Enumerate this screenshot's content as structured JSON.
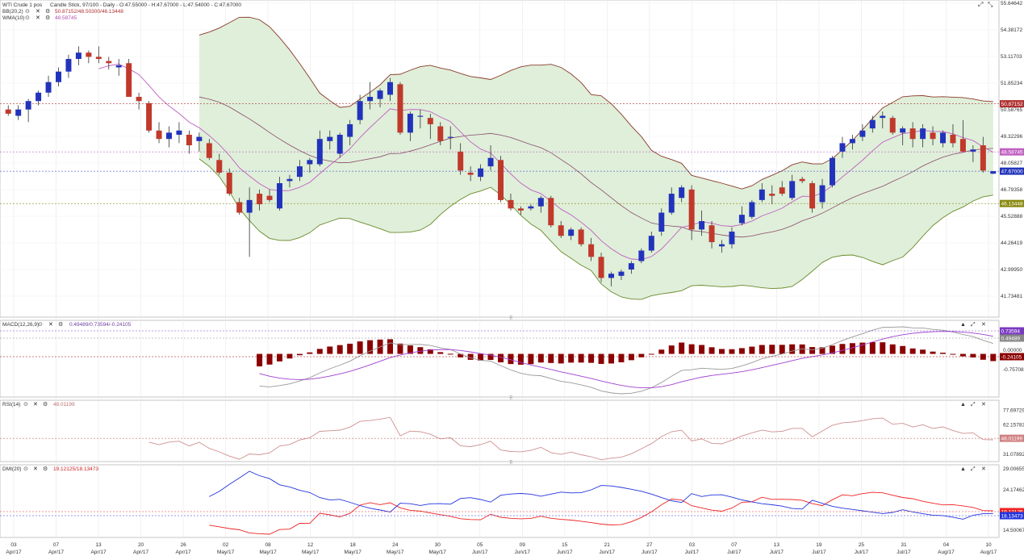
{
  "panels": {
    "main": {
      "title": "WTI Crude 1 pos",
      "info": "Candle Stick, 97/100 - Daily - O:47.55000 - H:47.67000 - L:47.54000 - C:47.67000",
      "bb_label": "BB(20,2)",
      "bb_values": "50.87152/48.50300/46.13448",
      "wma_label": "WMA(10)",
      "wma_value": "48.58745",
      "axis_ticks": [
        "55.64642",
        "54.38172",
        "53.11703",
        "51.85234",
        "50.58765",
        "49.32296",
        "48.05827",
        "46.79358",
        "45.52888",
        "44.26419",
        "42.99950",
        "41.73481"
      ],
      "badges": {
        "bb_upper": "50.87152",
        "wma": "48.58745",
        "last": "47.67000",
        "bb_lower": "46.13448"
      }
    },
    "macd": {
      "label": "MACD(12,26,9)",
      "values": "0.49489/0.73594/-0.24105",
      "axis_ticks": [
        "0.00000",
        "-0.75708"
      ],
      "badges": {
        "signal": "0.73594",
        "macd": "0.49489",
        "hist": "-0.24105"
      }
    },
    "rsi": {
      "label": "RSI(14)",
      "value": "48.01199",
      "axis_ticks": [
        "77.69729",
        "62.15783",
        "31.07892"
      ],
      "badges": {
        "rsi": "48.01199"
      }
    },
    "dmi": {
      "label": "DMI(20)",
      "values": "19.12125/18.13473",
      "axis_ticks": [
        "29.00655",
        "24.17462",
        "14.50067"
      ],
      "badges": {
        "plus": "19.12125",
        "minus": "18.13473"
      }
    }
  },
  "x_axis": {
    "ticks": [
      {
        "day": "03",
        "month": "Apr/17"
      },
      {
        "day": "07",
        "month": "Apr/17"
      },
      {
        "day": "13",
        "month": "Apr/17"
      },
      {
        "day": "20",
        "month": "Apr/17"
      },
      {
        "day": "26",
        "month": "Apr/17"
      },
      {
        "day": "02",
        "month": "May/17"
      },
      {
        "day": "08",
        "month": "May/17"
      },
      {
        "day": "12",
        "month": "May/17"
      },
      {
        "day": "18",
        "month": "May/17"
      },
      {
        "day": "24",
        "month": "May/17"
      },
      {
        "day": "30",
        "month": "May/17"
      },
      {
        "day": "05",
        "month": "Jun/17"
      },
      {
        "day": "09",
        "month": "Jun/17"
      },
      {
        "day": "15",
        "month": "Jun/17"
      },
      {
        "day": "21",
        "month": "Jun/17"
      },
      {
        "day": "27",
        "month": "Jun/17"
      },
      {
        "day": "03",
        "month": "Jul/17"
      },
      {
        "day": "07",
        "month": "Jul/17"
      },
      {
        "day": "13",
        "month": "Jul/17"
      },
      {
        "day": "19",
        "month": "Jul/17"
      },
      {
        "day": "25",
        "month": "Jul/17"
      },
      {
        "day": "31",
        "month": "Jul/17"
      },
      {
        "day": "04",
        "month": "Aug/17"
      },
      {
        "day": "10",
        "month": "Aug/17"
      }
    ]
  },
  "colors": {
    "up": "#2233bb",
    "down": "#c0392b",
    "band_fill": "#dcedd6",
    "band_line": "#8b3a2a",
    "wma": "#c060c0",
    "macd_line": "#999999",
    "signal_line": "#a040d0",
    "hist": "#8b0000",
    "rsi": "#d09090",
    "dmi_plus": "#ee2222",
    "dmi_minus": "#2233dd"
  },
  "chart_data": {
    "type": "candlestick",
    "x": [
      "Apr/17",
      "May/17",
      "Jun/17",
      "Jul/17",
      "Aug/17"
    ],
    "ohlc": [
      [
        50.6,
        50.8,
        50.3,
        50.4
      ],
      [
        50.3,
        50.8,
        50.1,
        50.6
      ],
      [
        50.6,
        51.1,
        50.0,
        51.0
      ],
      [
        51.0,
        51.5,
        50.8,
        51.4
      ],
      [
        51.4,
        52.2,
        51.2,
        51.9
      ],
      [
        51.9,
        52.6,
        51.7,
        52.4
      ],
      [
        52.4,
        53.2,
        52.1,
        53.0
      ],
      [
        53.0,
        53.6,
        52.7,
        53.3
      ],
      [
        53.3,
        53.4,
        52.8,
        53.1
      ],
      [
        53.1,
        53.6,
        52.8,
        53.0
      ],
      [
        52.9,
        53.1,
        52.5,
        52.8
      ],
      [
        52.6,
        53.0,
        52.2,
        52.7
      ],
      [
        52.8,
        53.0,
        51.2,
        51.2
      ],
      [
        51.2,
        51.4,
        50.6,
        51.0
      ],
      [
        50.9,
        51.0,
        49.5,
        49.6
      ],
      [
        49.6,
        50.0,
        49.0,
        49.2
      ],
      [
        49.2,
        49.8,
        48.8,
        49.5
      ],
      [
        49.4,
        50.0,
        49.0,
        49.6
      ],
      [
        49.4,
        49.6,
        48.5,
        48.9
      ],
      [
        49.1,
        49.5,
        48.6,
        49.3
      ],
      [
        49.0,
        49.2,
        48.2,
        48.3
      ],
      [
        48.2,
        48.5,
        47.5,
        47.6
      ],
      [
        47.6,
        47.8,
        46.5,
        46.6
      ],
      [
        46.2,
        46.4,
        45.6,
        45.7
      ],
      [
        45.7,
        46.9,
        43.6,
        46.3
      ],
      [
        46.6,
        46.8,
        45.8,
        46.1
      ],
      [
        46.5,
        46.8,
        46.2,
        46.3
      ],
      [
        45.9,
        47.4,
        45.8,
        47.1
      ],
      [
        47.2,
        47.5,
        46.9,
        47.3
      ],
      [
        47.4,
        48.2,
        47.2,
        47.9
      ],
      [
        48.0,
        48.3,
        47.6,
        48.2
      ],
      [
        48.0,
        49.6,
        47.9,
        49.2
      ],
      [
        49.1,
        49.6,
        48.7,
        49.3
      ],
      [
        48.5,
        49.5,
        48.3,
        49.4
      ],
      [
        49.3,
        50.1,
        48.9,
        49.9
      ],
      [
        50.1,
        51.3,
        49.9,
        51.0
      ],
      [
        51.0,
        51.9,
        50.6,
        51.2
      ],
      [
        51.1,
        51.6,
        50.7,
        51.5
      ],
      [
        51.3,
        52.1,
        51.0,
        51.9
      ],
      [
        51.8,
        51.9,
        49.4,
        49.5
      ],
      [
        49.5,
        50.5,
        49.1,
        50.4
      ],
      [
        50.3,
        50.6,
        49.7,
        50.3
      ],
      [
        50.2,
        50.4,
        49.2,
        49.9
      ],
      [
        49.8,
        50.0,
        48.9,
        49.1
      ],
      [
        49.3,
        49.8,
        48.7,
        49.3
      ],
      [
        48.6,
        49.0,
        47.5,
        47.7
      ],
      [
        47.6,
        47.9,
        47.2,
        47.5
      ],
      [
        47.4,
        48.0,
        47.2,
        47.8
      ],
      [
        47.9,
        48.9,
        47.7,
        48.3
      ],
      [
        48.2,
        48.4,
        46.2,
        46.3
      ],
      [
        46.3,
        46.6,
        45.8,
        45.9
      ],
      [
        45.9,
        46.0,
        45.6,
        45.8
      ],
      [
        45.9,
        46.1,
        45.8,
        46.0
      ],
      [
        46.0,
        46.5,
        45.7,
        46.4
      ],
      [
        46.4,
        46.5,
        45.0,
        45.1
      ],
      [
        45.1,
        45.3,
        44.5,
        44.6
      ],
      [
        44.6,
        45.0,
        44.4,
        44.9
      ],
      [
        44.9,
        45.0,
        44.1,
        44.2
      ],
      [
        44.2,
        44.5,
        43.4,
        43.6
      ],
      [
        43.6,
        43.8,
        42.4,
        42.6
      ],
      [
        42.6,
        42.9,
        42.2,
        42.8
      ],
      [
        42.7,
        43.0,
        42.5,
        42.9
      ],
      [
        43.0,
        43.4,
        42.8,
        43.3
      ],
      [
        43.4,
        44.0,
        43.3,
        43.9
      ],
      [
        43.9,
        44.8,
        43.8,
        44.6
      ],
      [
        44.8,
        45.9,
        44.6,
        45.7
      ],
      [
        45.7,
        46.9,
        45.6,
        46.6
      ],
      [
        46.4,
        47.0,
        46.2,
        46.9
      ],
      [
        46.8,
        47.0,
        44.4,
        44.9
      ],
      [
        44.9,
        45.8,
        44.6,
        45.3
      ],
      [
        45.1,
        45.3,
        44.0,
        44.3
      ],
      [
        44.1,
        44.4,
        43.8,
        44.2
      ],
      [
        44.2,
        45.0,
        44.0,
        44.8
      ],
      [
        45.2,
        46.0,
        45.1,
        45.6
      ],
      [
        45.5,
        46.3,
        45.4,
        46.2
      ],
      [
        46.3,
        47.1,
        46.2,
        46.8
      ],
      [
        46.6,
        47.0,
        46.1,
        46.5
      ],
      [
        46.9,
        47.2,
        46.5,
        46.6
      ],
      [
        46.4,
        47.5,
        46.3,
        47.2
      ],
      [
        47.3,
        47.4,
        47.1,
        47.2
      ],
      [
        47.1,
        47.2,
        45.7,
        45.9
      ],
      [
        46.2,
        47.3,
        45.9,
        47.0
      ],
      [
        47.0,
        48.4,
        46.9,
        48.3
      ],
      [
        48.6,
        49.3,
        48.3,
        49.0
      ],
      [
        49.0,
        49.4,
        48.7,
        49.2
      ],
      [
        49.3,
        49.9,
        49.1,
        49.6
      ],
      [
        49.7,
        50.3,
        49.5,
        50.1
      ],
      [
        50.2,
        50.5,
        49.7,
        50.3
      ],
      [
        50.2,
        50.3,
        49.4,
        49.5
      ],
      [
        49.5,
        49.8,
        48.9,
        49.7
      ],
      [
        49.7,
        50.0,
        48.8,
        49.2
      ],
      [
        49.2,
        49.9,
        48.8,
        49.7
      ],
      [
        49.5,
        49.8,
        48.9,
        49.2
      ],
      [
        49.0,
        49.6,
        48.8,
        49.5
      ],
      [
        49.4,
        49.9,
        48.8,
        49.0
      ],
      [
        49.2,
        50.1,
        48.7,
        48.6
      ],
      [
        48.6,
        48.9,
        48.1,
        48.7
      ],
      [
        48.9,
        49.3,
        47.6,
        47.7
      ],
      [
        47.55,
        47.67,
        47.54,
        47.67
      ]
    ],
    "bollinger": {
      "upper_last": 50.87152,
      "middle_last": 48.503,
      "lower_last": 46.13448
    },
    "wma_last": 48.58745,
    "macd": {
      "macd_last": 0.49489,
      "signal_last": 0.73594,
      "hist_last": -0.24105
    },
    "rsi_last": 48.01199,
    "dmi": {
      "plus_last": 19.12125,
      "minus_last": 18.13473
    }
  }
}
